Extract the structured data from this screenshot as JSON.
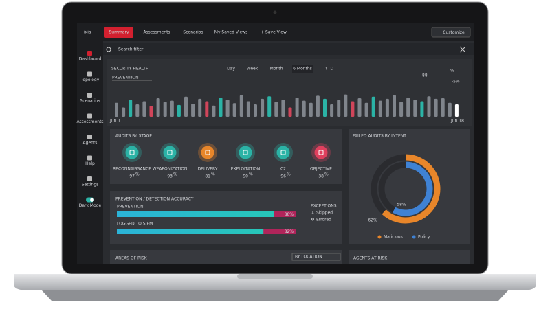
{
  "nav": {
    "logo": "ixia",
    "tabs": [
      "Summary",
      "Assessments",
      "Scenarios",
      "My Saved Views",
      "+ Save View"
    ],
    "customize": "Customize"
  },
  "sidebar": [
    "Dashboard",
    "Topology",
    "Scenarios",
    "Assessments",
    "Agents",
    "Help",
    "Settings",
    "Dark Mode"
  ],
  "search": "Search filter",
  "security_health": {
    "title": "SECURITY HEALTH",
    "filter": "PREVENTION",
    "periods": [
      "Day",
      "Week",
      "Month",
      "6 Months",
      "YTD"
    ],
    "selected": 3,
    "score": 88,
    "unit": "%",
    "change": "-5%",
    "start": "Jun 1",
    "end": "Jun 18",
    "bars": {
      "ylim": [
        0,
        100
      ],
      "values": [
        45,
        30,
        55,
        40,
        50,
        35,
        60,
        48,
        52,
        38,
        65,
        42,
        58,
        50,
        36,
        62,
        55,
        44,
        70,
        50,
        40,
        58,
        66,
        48,
        55,
        30,
        62,
        52,
        45,
        68,
        58,
        40,
        55,
        72,
        50,
        60,
        45,
        65,
        52,
        58,
        70,
        48,
        62,
        55,
        50,
        66,
        58,
        60,
        45,
        40
      ],
      "colors": [
        "#80858c",
        "#80858c",
        "#2bb3a6",
        "#80858c",
        "#80858c",
        "#d0455a",
        "#80858c",
        "#80858c",
        "#80858c",
        "#2bb3a6",
        "#80858c",
        "#80858c",
        "#80858c",
        "#d0455a",
        "#80858c",
        "#2bb3a6",
        "#80858c",
        "#80858c",
        "#80858c",
        "#80858c",
        "#80858c",
        "#80858c",
        "#2bb3a6",
        "#80858c",
        "#80858c",
        "#d0455a",
        "#80858c",
        "#80858c",
        "#80858c",
        "#80858c",
        "#2bb3a6",
        "#80858c",
        "#80858c",
        "#80858c",
        "#d0455a",
        "#80858c",
        "#80858c",
        "#2bb3a6",
        "#80858c",
        "#80858c",
        "#80858c",
        "#80858c",
        "#80858c",
        "#80858c",
        "#2bb3a6",
        "#80858c",
        "#80858c",
        "#80858c",
        "#80858c",
        "#ffffff"
      ]
    }
  },
  "audits": {
    "title": "AUDITS BY STAGE",
    "unit": "%",
    "stages": [
      {
        "label": "RECONNAISSANCE",
        "value": 97,
        "color": "#2bb3a6"
      },
      {
        "label": "WEAPONIZATION",
        "value": 93,
        "color": "#2bb3a6"
      },
      {
        "label": "DELIVERY",
        "value": 81,
        "color": "#e8862a"
      },
      {
        "label": "EXPLOITATION",
        "value": 90,
        "color": "#2bb3a6"
      },
      {
        "label": "C2",
        "value": 96,
        "color": "#2bb3a6"
      },
      {
        "label": "OBJECTIVE",
        "value": 38,
        "color": "#e0405e"
      }
    ]
  },
  "accuracy": {
    "title": "PREVENTION / DETECTION  ACCURACY",
    "xlim": [
      0,
      100
    ],
    "rows": [
      {
        "label": "PREVENTION",
        "value": 88,
        "value_label": "88%"
      },
      {
        "label": "LOGGED TO SIEM",
        "value": 82,
        "value_label": "82%"
      }
    ],
    "exceptions": {
      "title": "EXCEPTIONS",
      "items": [
        {
          "count": 1,
          "label": "Skipped"
        },
        {
          "count": 0,
          "label": "Errored"
        }
      ]
    }
  },
  "failed": {
    "title": "FAILED AUDITS BY INTENT",
    "xlim": [
      0,
      100
    ],
    "series": [
      {
        "name": "Malicious",
        "color": "#e8862a",
        "value": 62,
        "value_label": "62%"
      },
      {
        "name": "Policy",
        "color": "#3f82d4",
        "value": 58,
        "value_label": "58%"
      }
    ]
  },
  "bottom": {
    "areas": "AREAS OF RISK",
    "areas_filter": "BY LOCATION",
    "agents": "AGENTS AT RISK"
  }
}
